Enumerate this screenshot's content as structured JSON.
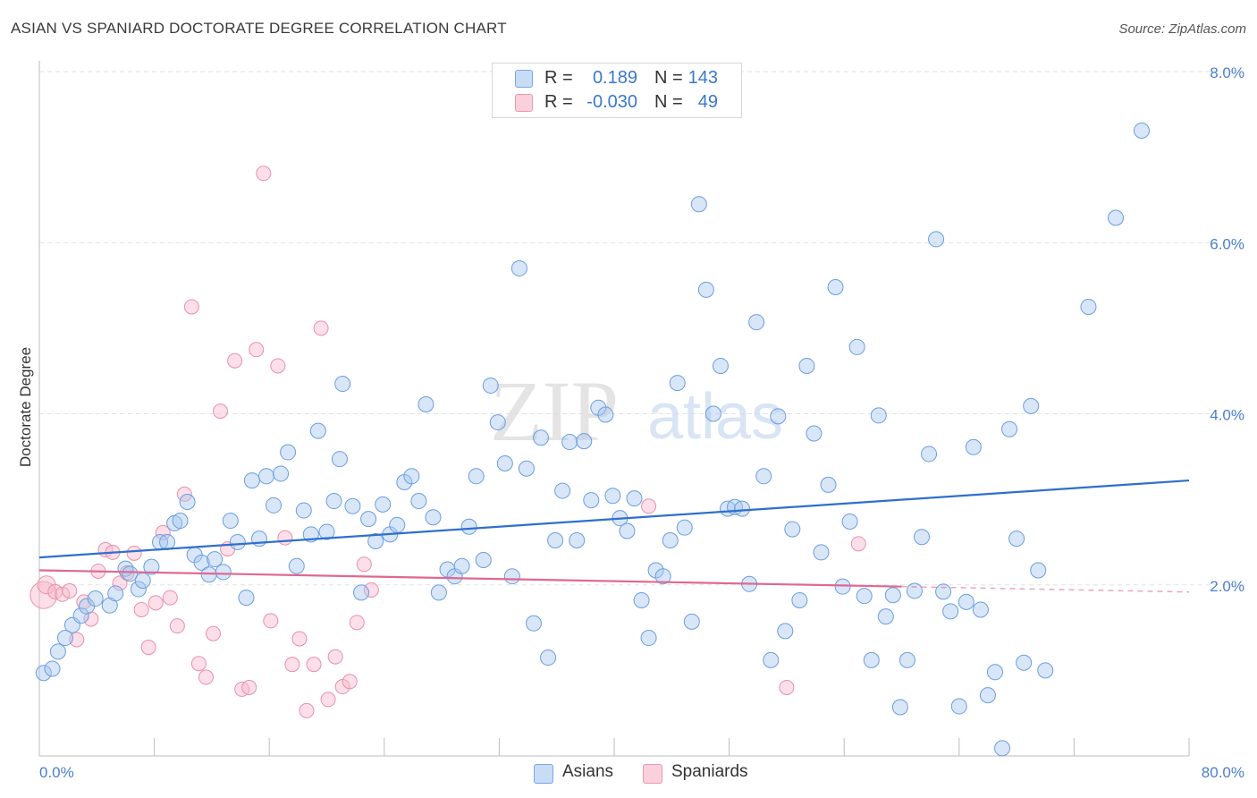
{
  "header": {
    "title": "ASIAN VS SPANIARD DOCTORATE DEGREE CORRELATION CHART",
    "source": "Source: ZipAtlas.com"
  },
  "watermark": {
    "zip": "ZIP",
    "atlas": "atlas"
  },
  "legend": {
    "rows": [
      {
        "r_label": "R =",
        "r_value": "0.189",
        "n_label": "N =",
        "n_value": "143",
        "color": "#a8c8f0"
      },
      {
        "r_label": "R =",
        "r_value": "-0.030",
        "n_label": "N =",
        "n_value": "49",
        "color": "#f8b8cc"
      }
    ],
    "bottom": [
      {
        "label": "Asians",
        "color": "#a8c8f0"
      },
      {
        "label": "Spaniards",
        "color": "#f8b8cc"
      }
    ]
  },
  "colors": {
    "asian_fill": "#a8c8f0",
    "asian_stroke": "#6a9ee0",
    "asian_line": "#2f6fcc",
    "spaniard_fill": "#f8b8cc",
    "spaniard_stroke": "#e890aa",
    "spaniard_line": "#e06890",
    "tick_label": "#4a7fd0",
    "grid": "#e2e2e2"
  },
  "chart_data": {
    "type": "scatter",
    "title": "ASIAN VS SPANIARD DOCTORATE DEGREE CORRELATION CHART",
    "xlabel": "",
    "ylabel": "Doctorate Degree",
    "xlim": [
      0,
      80
    ],
    "ylim": [
      0,
      8
    ],
    "x_tick_labels": [
      "0.0%",
      "80.0%"
    ],
    "y_ticks": [
      2,
      4,
      6,
      8
    ],
    "y_tick_labels": [
      "2.0%",
      "4.0%",
      "6.0%",
      "8.0%"
    ],
    "grid": true,
    "legend_position": "top-center",
    "series": [
      {
        "name": "Asians",
        "r": 0.189,
        "n": 143,
        "trend": [
          [
            0,
            2.32
          ],
          [
            80,
            3.22
          ]
        ],
        "points": [
          [
            0.3,
            0.97
          ],
          [
            0.9,
            1.02
          ],
          [
            1.3,
            1.22
          ],
          [
            1.8,
            1.38
          ],
          [
            2.3,
            1.53
          ],
          [
            2.9,
            1.64
          ],
          [
            3.3,
            1.75
          ],
          [
            3.9,
            1.84
          ],
          [
            4.9,
            1.76
          ],
          [
            5.3,
            1.9
          ],
          [
            6.0,
            2.19
          ],
          [
            6.3,
            2.13
          ],
          [
            6.9,
            1.95
          ],
          [
            7.2,
            2.05
          ],
          [
            7.8,
            2.21
          ],
          [
            8.4,
            2.5
          ],
          [
            8.9,
            2.5
          ],
          [
            9.4,
            2.72
          ],
          [
            9.8,
            2.75
          ],
          [
            10.3,
            2.97
          ],
          [
            10.8,
            2.35
          ],
          [
            11.3,
            2.26
          ],
          [
            11.8,
            2.12
          ],
          [
            12.2,
            2.3
          ],
          [
            12.8,
            2.15
          ],
          [
            13.3,
            2.75
          ],
          [
            13.8,
            2.5
          ],
          [
            14.4,
            1.85
          ],
          [
            14.8,
            3.22
          ],
          [
            15.3,
            2.54
          ],
          [
            15.8,
            3.27
          ],
          [
            16.3,
            2.93
          ],
          [
            16.8,
            3.3
          ],
          [
            17.3,
            3.55
          ],
          [
            17.9,
            2.22
          ],
          [
            18.4,
            2.87
          ],
          [
            18.9,
            2.59
          ],
          [
            19.4,
            3.8
          ],
          [
            20.0,
            2.62
          ],
          [
            20.5,
            2.98
          ],
          [
            20.9,
            3.47
          ],
          [
            21.1,
            4.35
          ],
          [
            21.8,
            2.92
          ],
          [
            22.4,
            1.91
          ],
          [
            22.9,
            2.77
          ],
          [
            23.4,
            2.51
          ],
          [
            23.9,
            2.94
          ],
          [
            24.4,
            2.59
          ],
          [
            24.9,
            2.7
          ],
          [
            25.4,
            3.2
          ],
          [
            25.9,
            3.27
          ],
          [
            26.4,
            2.98
          ],
          [
            26.9,
            4.11
          ],
          [
            27.4,
            2.79
          ],
          [
            27.8,
            1.91
          ],
          [
            28.4,
            2.18
          ],
          [
            28.9,
            2.1
          ],
          [
            29.4,
            2.22
          ],
          [
            29.9,
            2.68
          ],
          [
            30.4,
            3.27
          ],
          [
            30.9,
            2.29
          ],
          [
            31.4,
            4.33
          ],
          [
            31.9,
            3.9
          ],
          [
            32.4,
            3.42
          ],
          [
            32.9,
            2.1
          ],
          [
            33.4,
            5.7
          ],
          [
            33.9,
            3.36
          ],
          [
            34.4,
            1.55
          ],
          [
            34.9,
            3.72
          ],
          [
            35.4,
            1.15
          ],
          [
            35.9,
            2.52
          ],
          [
            36.4,
            3.1
          ],
          [
            36.9,
            3.67
          ],
          [
            37.4,
            2.52
          ],
          [
            37.9,
            3.68
          ],
          [
            38.4,
            2.99
          ],
          [
            38.9,
            4.07
          ],
          [
            39.4,
            3.99
          ],
          [
            39.9,
            3.04
          ],
          [
            40.4,
            2.78
          ],
          [
            40.9,
            2.63
          ],
          [
            41.4,
            3.01
          ],
          [
            41.9,
            1.82
          ],
          [
            42.4,
            1.38
          ],
          [
            42.9,
            2.17
          ],
          [
            43.4,
            2.1
          ],
          [
            43.9,
            2.52
          ],
          [
            44.4,
            4.36
          ],
          [
            44.9,
            2.67
          ],
          [
            45.4,
            1.57
          ],
          [
            45.9,
            6.45
          ],
          [
            46.4,
            5.45
          ],
          [
            46.9,
            4.0
          ],
          [
            47.4,
            4.56
          ],
          [
            47.9,
            2.89
          ],
          [
            48.4,
            2.91
          ],
          [
            48.9,
            2.89
          ],
          [
            49.4,
            2.01
          ],
          [
            49.9,
            5.07
          ],
          [
            50.4,
            3.27
          ],
          [
            50.9,
            1.12
          ],
          [
            51.4,
            3.97
          ],
          [
            51.9,
            1.46
          ],
          [
            52.4,
            2.65
          ],
          [
            52.9,
            1.82
          ],
          [
            53.4,
            4.56
          ],
          [
            53.9,
            3.77
          ],
          [
            54.4,
            2.38
          ],
          [
            54.9,
            3.17
          ],
          [
            55.4,
            5.48
          ],
          [
            55.9,
            1.98
          ],
          [
            56.4,
            2.74
          ],
          [
            56.9,
            4.78
          ],
          [
            57.4,
            1.87
          ],
          [
            57.9,
            1.12
          ],
          [
            58.4,
            3.98
          ],
          [
            58.9,
            1.63
          ],
          [
            59.4,
            1.88
          ],
          [
            59.9,
            0.57
          ],
          [
            60.4,
            1.12
          ],
          [
            60.9,
            1.93
          ],
          [
            61.4,
            2.56
          ],
          [
            61.9,
            3.53
          ],
          [
            62.4,
            6.04
          ],
          [
            62.9,
            1.92
          ],
          [
            63.4,
            1.69
          ],
          [
            64.0,
            0.58
          ],
          [
            64.5,
            1.8
          ],
          [
            65.0,
            3.61
          ],
          [
            65.5,
            1.71
          ],
          [
            66.0,
            0.71
          ],
          [
            66.5,
            0.98
          ],
          [
            67.0,
            0.09
          ],
          [
            67.5,
            3.82
          ],
          [
            68.0,
            2.54
          ],
          [
            68.5,
            1.09
          ],
          [
            69.0,
            4.09
          ],
          [
            69.5,
            2.17
          ],
          [
            70.0,
            1.0
          ],
          [
            73.0,
            5.25
          ],
          [
            74.9,
            6.29
          ],
          [
            76.7,
            7.31
          ]
        ]
      },
      {
        "name": "Spaniards",
        "r": -0.03,
        "n": 49,
        "trend": [
          [
            0,
            2.17
          ],
          [
            60,
            1.98
          ]
        ],
        "points": [
          [
            0.3,
            1.88
          ],
          [
            0.5,
            2.0
          ],
          [
            1.1,
            1.92
          ],
          [
            1.6,
            1.89
          ],
          [
            2.1,
            1.93
          ],
          [
            2.6,
            1.36
          ],
          [
            3.1,
            1.8
          ],
          [
            3.6,
            1.6
          ],
          [
            4.1,
            2.16
          ],
          [
            4.6,
            2.41
          ],
          [
            5.1,
            2.38
          ],
          [
            5.6,
            2.02
          ],
          [
            6.1,
            2.14
          ],
          [
            6.6,
            2.37
          ],
          [
            7.1,
            1.71
          ],
          [
            7.6,
            1.27
          ],
          [
            8.1,
            1.79
          ],
          [
            8.6,
            2.61
          ],
          [
            9.1,
            1.85
          ],
          [
            9.6,
            1.52
          ],
          [
            10.1,
            3.06
          ],
          [
            10.6,
            5.25
          ],
          [
            11.1,
            1.08
          ],
          [
            11.6,
            0.92
          ],
          [
            12.1,
            1.43
          ],
          [
            12.6,
            4.03
          ],
          [
            13.1,
            2.42
          ],
          [
            13.6,
            4.62
          ],
          [
            14.1,
            0.78
          ],
          [
            14.6,
            0.8
          ],
          [
            15.1,
            4.75
          ],
          [
            15.6,
            6.81
          ],
          [
            16.1,
            1.58
          ],
          [
            16.6,
            4.56
          ],
          [
            17.1,
            2.55
          ],
          [
            17.6,
            1.07
          ],
          [
            18.1,
            1.37
          ],
          [
            18.6,
            0.53
          ],
          [
            19.1,
            1.07
          ],
          [
            19.6,
            5.0
          ],
          [
            20.1,
            0.66
          ],
          [
            20.6,
            1.16
          ],
          [
            21.1,
            0.81
          ],
          [
            21.6,
            0.87
          ],
          [
            22.1,
            1.56
          ],
          [
            22.6,
            2.24
          ],
          [
            23.1,
            1.94
          ],
          [
            42.4,
            2.92
          ],
          [
            52.0,
            0.8
          ],
          [
            57.0,
            2.48
          ]
        ]
      }
    ]
  }
}
